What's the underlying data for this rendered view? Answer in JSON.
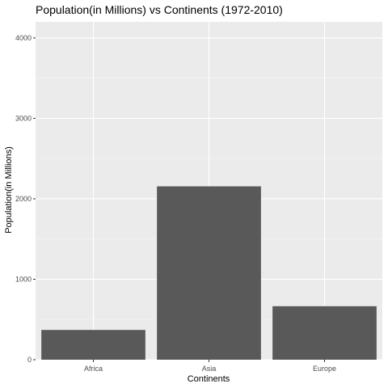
{
  "chart_data": {
    "type": "bar",
    "title": "Population(in Millions) vs Continents (1972-2010)",
    "xlabel": "Continents",
    "ylabel": "Population(in Millions)",
    "categories": [
      "Africa",
      "Asia",
      "Europe"
    ],
    "values": [
      370,
      2155,
      665
    ],
    "ylim": [
      0,
      4200
    ],
    "yticks": [
      0,
      1000,
      2000,
      3000,
      4000
    ],
    "grid": true,
    "legend": "none",
    "colors": {
      "bar": "#595959",
      "panel": "#ebebeb",
      "grid_major": "#ffffff"
    }
  }
}
